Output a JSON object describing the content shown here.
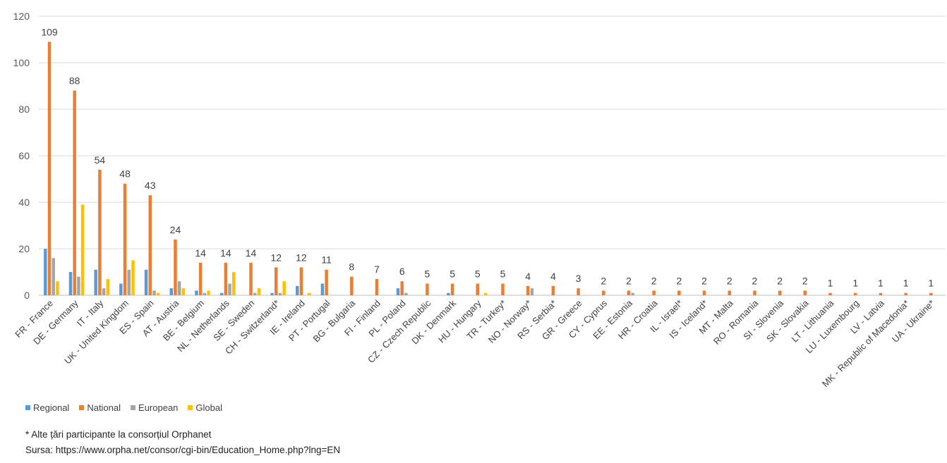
{
  "chart_data": {
    "type": "bar",
    "ylim": [
      0,
      120
    ],
    "yticks": [
      0,
      20,
      40,
      60,
      80,
      100,
      120
    ],
    "grid": true,
    "legend_position": "bottom-left",
    "categories": [
      "FR - France",
      "DE - Germany",
      "IT - Italy",
      "UK - United Kingdom",
      "ES - Spain",
      "AT - Austria",
      "BE - Belgium",
      "NL - Netherlands",
      "SE - Sweden",
      "CH - Switzerland*",
      "IE - Ireland",
      "PT - Portugal",
      "BG - Bulgaria",
      "FI - Finland",
      "PL - Poland",
      "CZ - Czech Republic",
      "DK - Denmark",
      "HU - Hungary",
      "TR - Turkey*",
      "NO - Norway*",
      "RS - Serbia*",
      "GR - Greece",
      "CY - Cyprus",
      "EE - Estonia",
      "HR - Croatia",
      "IL - Israel*",
      "IS - Iceland*",
      "MT - Malta",
      "RO - Romania",
      "SI - Slovenia",
      "SK - Slovakia",
      "LT - Lithuania",
      "LU - Luxembourg",
      "LV - Latvia",
      "MK - Republic of Macedonia*",
      "UA - Ukraine*"
    ],
    "series": [
      {
        "name": "Regional",
        "color": "#5B9BD5",
        "values": [
          20,
          10,
          11,
          5,
          11,
          3,
          2,
          1,
          0,
          1,
          4,
          5,
          0,
          0,
          3,
          0,
          1,
          0,
          0,
          0,
          0,
          0,
          0,
          0,
          0,
          0,
          0,
          0,
          0,
          0,
          0,
          0,
          0,
          0,
          0,
          0
        ]
      },
      {
        "name": "National",
        "color": "#ED7D31",
        "values": [
          109,
          88,
          54,
          48,
          43,
          24,
          14,
          14,
          14,
          12,
          12,
          11,
          8,
          7,
          6,
          5,
          5,
          5,
          5,
          4,
          4,
          3,
          2,
          2,
          2,
          2,
          2,
          2,
          2,
          2,
          2,
          1,
          1,
          1,
          1,
          1
        ]
      },
      {
        "name": "European",
        "color": "#A5A5A5",
        "values": [
          16,
          8,
          3,
          11,
          2,
          6,
          1,
          5,
          1,
          1,
          0,
          0,
          0,
          0,
          1,
          0,
          0,
          0,
          0,
          3,
          0,
          0,
          0,
          1,
          0,
          0,
          0,
          0,
          0,
          0,
          0,
          0,
          0,
          0,
          0,
          0
        ]
      },
      {
        "name": "Global",
        "color": "#FFC000",
        "values": [
          6,
          39,
          7,
          15,
          1,
          3,
          2,
          10,
          3,
          6,
          1,
          0,
          0,
          0,
          0,
          0,
          0,
          1,
          0,
          0,
          0,
          0,
          0,
          0,
          0,
          0,
          0,
          0,
          0,
          0,
          0,
          0,
          0,
          0,
          0,
          0
        ]
      }
    ]
  },
  "notes": {
    "footnote": "* Alte țări participante la consorțiul Orphanet",
    "source": "Sursa: https://www.orpha.net/consor/cgi-bin/Education_Home.php?lng=EN"
  }
}
